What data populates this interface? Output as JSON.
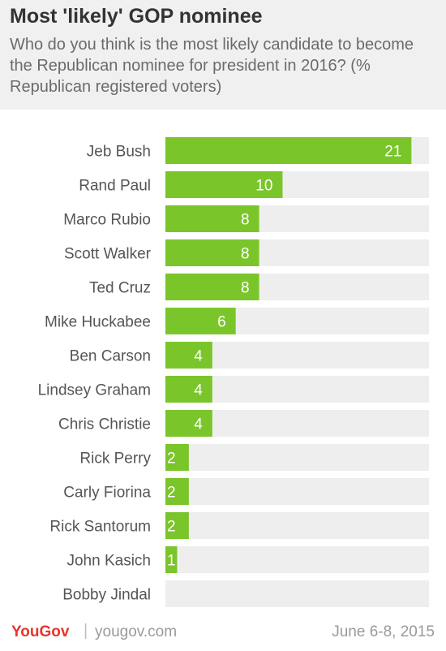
{
  "header": {
    "title": "Most 'likely' GOP nominee",
    "subtitle": "Who do you think is the most likely candidate to become the Republican nominee for president in 2016? (% Republican registered voters)"
  },
  "footer": {
    "logo": "YouGov",
    "separator": "|",
    "site": "yougov.com",
    "date": "June 6-8, 2015"
  },
  "colors": {
    "bar": "#7ac52a",
    "track": "#eeeeee",
    "label": "#555555",
    "value_text": "#ffffff"
  },
  "chart_data": {
    "type": "bar",
    "orientation": "horizontal",
    "categories": [
      "Jeb Bush",
      "Rand Paul",
      "Marco Rubio",
      "Scott Walker",
      "Ted Cruz",
      "Mike Huckabee",
      "Ben Carson",
      "Lindsey Graham",
      "Chris Christie",
      "Rick Perry",
      "Carly Fiorina",
      "Rick Santorum",
      "John Kasich",
      "Bobby Jindal"
    ],
    "values": [
      21,
      10,
      8,
      8,
      8,
      6,
      4,
      4,
      4,
      2,
      2,
      2,
      1,
      0
    ],
    "value_labels": [
      "21",
      "10",
      "8",
      "8",
      "8",
      "6",
      "4",
      "4",
      "4",
      "2",
      "2",
      "2",
      "1",
      ""
    ],
    "title": "Most 'likely' GOP nominee",
    "xlabel": "",
    "ylabel": "",
    "xlim": [
      0,
      22.5
    ],
    "grid": false,
    "legend": "none"
  }
}
